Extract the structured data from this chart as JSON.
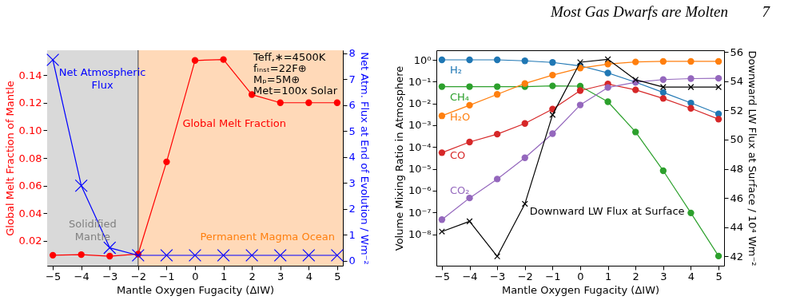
{
  "chart_data": [
    {
      "type": "line",
      "xlabel": "Mantle Oxygen Fugacity (ΔIW)",
      "ylabel": "Global Melt Fraction of Mantle",
      "y2label": "Net Atm. Flux at End of Evolution / Wm⁻²",
      "x": [
        -5,
        -4,
        -3,
        -2,
        -1,
        0,
        1,
        2,
        3,
        4,
        5
      ],
      "xlim": [
        -5.2,
        5.2
      ],
      "xticks": [
        {
          "value": -5,
          "label": "−5"
        },
        {
          "value": -4,
          "label": "−4"
        },
        {
          "value": -3,
          "label": "−3"
        },
        {
          "value": -2,
          "label": "−2"
        },
        {
          "value": -1,
          "label": "−1"
        },
        0,
        1,
        2,
        3,
        4,
        5
      ],
      "ylim": [
        0.002,
        0.158
      ],
      "yticks": [
        {
          "value": 0.02,
          "label": "0.02"
        },
        {
          "value": 0.04,
          "label": "0.04"
        },
        {
          "value": 0.06,
          "label": "0.06"
        },
        {
          "value": 0.08,
          "label": "0.08"
        },
        {
          "value": 0.1,
          "label": "0.10"
        },
        {
          "value": 0.12,
          "label": "0.12"
        },
        {
          "value": 0.14,
          "label": "0.14"
        }
      ],
      "y2lim": [
        -0.2,
        8.12
      ],
      "y2ticks": [
        0,
        1,
        2,
        3,
        4,
        5,
        6,
        7,
        8
      ],
      "series": [
        {
          "name": "Global Melt Fraction",
          "color": "#ff0000",
          "marker": "circle",
          "values": [
            0.0096,
            0.01,
            0.0089,
            0.0104,
            0.0772,
            0.1506,
            0.1513,
            0.1259,
            0.12,
            0.12,
            0.12
          ]
        },
        {
          "name": "Net Atmospheric Flux",
          "color": "#0000ff",
          "marker": "cross",
          "axis": "y2",
          "values": [
            7.75,
            2.89,
            0.49,
            0.2,
            0.2,
            0.2,
            0.2,
            0.2,
            0.2,
            0.2,
            0.2
          ]
        }
      ],
      "bands": [
        {
          "axis": "x",
          "from": -5.2,
          "to": -2,
          "label": "Solidified Mantle",
          "color": "#d9d9d9"
        },
        {
          "axis": "x",
          "from": -2,
          "to": 5.2,
          "label": "Permanent Magma Ocean",
          "color": "#ffd9b8"
        }
      ],
      "ref_lines": [
        {
          "axis": "x",
          "value": -2,
          "color": "#404040"
        }
      ],
      "annotations": [
        "Teff,∗=4500K",
        "fᵢₙₛₜ=22F⊕",
        "Mₚ=5M⊕",
        "Met=100x Solar"
      ],
      "grid": false
    },
    {
      "type": "line",
      "xlabel": "Mantle Oxygen Fugacity (ΔIW)",
      "ylabel": "Volume Mixing Ratio in Atmosphere",
      "y2label": "Downward LW Flux at Surface / 10⁴ Wm⁻²",
      "x": [
        -5,
        -4,
        -3,
        -2,
        -1,
        0,
        1,
        2,
        3,
        4,
        5
      ],
      "xlim": [
        -5.2,
        5.2
      ],
      "xticks": [
        {
          "value": -5,
          "label": "−5"
        },
        {
          "value": -4,
          "label": "−4"
        },
        {
          "value": -3,
          "label": "−3"
        },
        {
          "value": -2,
          "label": "−2"
        },
        {
          "value": -1,
          "label": "−1"
        },
        0,
        1,
        2,
        3,
        4,
        5
      ],
      "log": "y",
      "ylim": [
        3.6e-10,
        2.75
      ],
      "yticks": [
        {
          "value": 1e-08,
          "label": "10⁻⁸"
        },
        {
          "value": 1e-07,
          "label": "10⁻⁷"
        },
        {
          "value": 1e-06,
          "label": "10⁻⁶"
        },
        {
          "value": 1e-05,
          "label": "10⁻⁵"
        },
        {
          "value": 0.0001,
          "label": "10⁻⁴"
        },
        {
          "value": 0.001,
          "label": "10⁻³"
        },
        {
          "value": 0.01,
          "label": "10⁻²"
        },
        {
          "value": 0.1,
          "label": "10⁻¹"
        },
        {
          "value": 1,
          "label": "10⁰"
        }
      ],
      "y2lim": [
        41.36,
        56.12
      ],
      "y2ticks": [
        42,
        44,
        46,
        48,
        50,
        52,
        54,
        56
      ],
      "series": [
        {
          "name": "H₂",
          "color": "#1f77b4",
          "marker": "circle",
          "values": [
            1.0,
            1.0,
            1.0,
            0.9,
            0.76,
            0.53,
            0.25,
            0.094,
            0.032,
            0.0105,
            0.0033
          ]
        },
        {
          "name": "CH₄",
          "color": "#2ca02c",
          "marker": "circle",
          "values": [
            0.059,
            0.059,
            0.059,
            0.059,
            0.064,
            0.062,
            0.012,
            0.00049,
            8.2e-06,
            9.5e-08,
            1e-09
          ]
        },
        {
          "name": "H₂O",
          "color": "#ff7f0e",
          "marker": "circle",
          "values": [
            0.0027,
            0.0083,
            0.026,
            0.082,
            0.2,
            0.42,
            0.64,
            0.8,
            0.85,
            0.85,
            0.85
          ]
        },
        {
          "name": "CO",
          "color": "#d62728",
          "marker": "circle",
          "values": [
            5.5e-05,
            0.00017,
            0.00039,
            0.0012,
            0.0055,
            0.039,
            0.078,
            0.042,
            0.017,
            0.006,
            0.0019
          ]
        },
        {
          "name": "CO₂",
          "color": "#9467bd",
          "marker": "circle",
          "values": [
            4.7e-08,
            4.6e-07,
            3.4e-06,
            3.2e-05,
            0.00041,
            0.0085,
            0.054,
            0.094,
            0.124,
            0.138,
            0.142
          ]
        },
        {
          "name": "Downward LW Flux at Surface",
          "color": "#000000",
          "marker": "cross",
          "axis": "y2",
          "values": [
            43.7,
            44.4,
            42.0,
            45.6,
            51.7,
            55.3,
            55.5,
            54.1,
            53.6,
            53.6,
            53.6
          ]
        }
      ],
      "annotations": [
        "Most Gas Dwarfs are Molten",
        "7"
      ],
      "grid": false
    }
  ]
}
